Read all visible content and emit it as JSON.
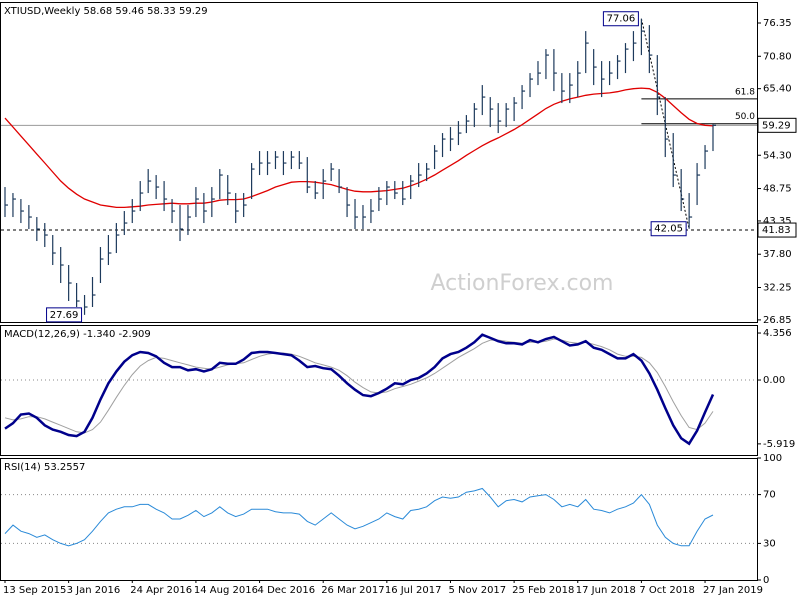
{
  "chart_data": [
    {
      "type": "ohlc",
      "title": "XTIUSD,Weekly  58.68 59.46 58.33 59.29",
      "watermark": "ActionForex.com",
      "ylim": [
        26.5,
        79.85
      ],
      "yticks": [
        76.35,
        {
          "value": 70.8,
          "label": "70.80"
        },
        {
          "value": 65.4,
          "label": "65.40"
        },
        59.85,
        {
          "value": 54.3,
          "label": "54.30"
        },
        48.75,
        43.35,
        {
          "value": 37.8,
          "label": "37.80"
        },
        32.25,
        26.85
      ],
      "color": "#1d3a5c",
      "high": [
        49,
        48,
        47,
        46,
        44,
        43,
        41,
        39,
        36,
        33,
        31,
        34,
        39,
        41,
        43,
        45,
        47,
        50,
        52,
        51,
        50,
        47,
        46,
        46,
        49,
        48,
        49,
        52,
        51,
        48,
        48,
        53,
        55,
        55,
        55,
        55,
        55,
        55,
        54,
        50,
        52,
        53,
        52,
        49,
        47,
        46,
        47,
        49,
        50,
        50,
        50,
        51,
        53,
        53,
        56,
        58,
        59,
        60,
        61,
        63,
        66,
        64,
        63,
        63,
        64,
        66,
        68,
        70,
        72,
        72,
        68,
        68,
        70,
        75,
        72,
        70,
        70,
        71,
        73,
        75,
        77.06,
        76,
        71,
        64,
        58,
        52,
        48,
        53,
        56,
        59.46
      ],
      "low": [
        44,
        44,
        43,
        42,
        40,
        39,
        36,
        33,
        30,
        29,
        27.69,
        29,
        33,
        36,
        38,
        41,
        43,
        45,
        48,
        47,
        45,
        43,
        40,
        41,
        44,
        43,
        44,
        47,
        46,
        43,
        44,
        47,
        51,
        51,
        52,
        51,
        52,
        52,
        48,
        47,
        47,
        50,
        48,
        44,
        42,
        42,
        43,
        45,
        46,
        47,
        46,
        47,
        49,
        50,
        52,
        54,
        55,
        56,
        58,
        59,
        61,
        59,
        58,
        59,
        60,
        62,
        64,
        66,
        67,
        65,
        63,
        63,
        64,
        68,
        66,
        64,
        66,
        67,
        68,
        70,
        71,
        68,
        61,
        54,
        49,
        45,
        42.05,
        46,
        52,
        55
      ],
      "close": [
        46,
        47,
        45,
        44,
        42,
        41,
        38,
        36,
        33,
        30,
        29,
        31,
        37,
        38,
        41,
        43,
        45,
        48,
        50,
        49,
        47,
        45,
        42,
        44,
        47,
        45,
        47,
        51,
        48,
        45,
        46,
        52,
        53,
        53,
        54,
        53,
        54,
        53,
        49,
        48,
        50,
        52,
        49,
        46,
        44,
        44,
        45,
        47,
        49,
        48,
        47,
        50,
        51,
        52,
        55,
        57,
        57,
        58,
        60,
        62,
        64,
        62,
        60,
        62,
        63,
        65,
        67,
        68,
        71,
        68,
        65,
        66,
        68,
        73,
        69,
        67,
        68,
        70,
        72,
        73,
        75,
        71,
        64,
        57,
        51,
        47,
        44,
        51,
        55,
        59.29
      ],
      "ma": {
        "color": "#e00000",
        "values": [
          60.5,
          59,
          57.5,
          56,
          54.5,
          53,
          51.5,
          50,
          48.8,
          47.8,
          47,
          46.5,
          46,
          45.8,
          45.6,
          45.6,
          45.7,
          45.8,
          46,
          46.1,
          46.2,
          46.3,
          46.2,
          46.2,
          46.3,
          46.3,
          46.5,
          46.8,
          46.9,
          46.9,
          47,
          47.4,
          47.9,
          48.4,
          49,
          49.4,
          49.8,
          49.9,
          49.9,
          49.8,
          49.6,
          49.4,
          49,
          48.6,
          48.3,
          48.2,
          48.2,
          48.3,
          48.4,
          48.6,
          48.8,
          49.2,
          49.7,
          50.3,
          51,
          51.8,
          52.6,
          53.4,
          54.3,
          55.1,
          55.9,
          56.6,
          57.2,
          57.9,
          58.6,
          59.4,
          60.3,
          61.2,
          62.1,
          62.8,
          63.3,
          63.7,
          64,
          64.3,
          64.5,
          64.6,
          64.7,
          64.9,
          65.2,
          65.4,
          65.5,
          65.4,
          64.8,
          63.8,
          62.6,
          61.4,
          60.3,
          59.6,
          59.3,
          59.2
        ]
      },
      "price_labels": [
        77.06,
        27.69,
        42.05
      ],
      "last_price": 59.29,
      "support": 41.83,
      "fib": [
        {
          "ratio_label": "61.8",
          "price": 63.69
        },
        {
          "ratio_label": "50.0",
          "price": 59.56
        }
      ]
    },
    {
      "type": "macd",
      "title": "MACD(12,26,9) -1.340 -2.909",
      "ylim": [
        -6.95,
        5.1
      ],
      "yticks": [
        4.356,
        {
          "value": 0,
          "label": "0.00"
        },
        -5.919
      ],
      "zero_line": true,
      "macd": {
        "color": "#00008b",
        "values": [
          -4.5,
          -4,
          -3.2,
          -3.1,
          -3.5,
          -4.2,
          -4.6,
          -4.8,
          -5.1,
          -5.2,
          -4.8,
          -3.5,
          -1.8,
          -0.3,
          0.8,
          1.7,
          2.3,
          2.6,
          2.5,
          2.2,
          1.6,
          1.2,
          1.2,
          0.9,
          1.0,
          0.8,
          1.0,
          1.6,
          1.5,
          1.5,
          1.9,
          2.5,
          2.6,
          2.6,
          2.5,
          2.4,
          2.3,
          1.8,
          1.2,
          1.3,
          1.1,
          1.0,
          0.4,
          -0.3,
          -0.9,
          -1.4,
          -1.5,
          -1.2,
          -0.8,
          -0.3,
          -0.4,
          0.0,
          0.2,
          0.6,
          1.2,
          2.0,
          2.4,
          2.6,
          3.0,
          3.5,
          4.2,
          3.9,
          3.6,
          3.4,
          3.4,
          3.3,
          3.7,
          3.5,
          3.8,
          4.0,
          3.6,
          3.2,
          3.3,
          3.6,
          3.0,
          2.8,
          2.4,
          2.0,
          2.0,
          2.4,
          1.8,
          0.6,
          -0.9,
          -2.6,
          -4.2,
          -5.4,
          -5.9,
          -4.7,
          -3.0,
          -1.34
        ]
      },
      "signal": {
        "color": "#a0a0a0",
        "values": [
          -3.5,
          -3.7,
          -3.6,
          -3.4,
          -3.4,
          -3.6,
          -3.9,
          -4.2,
          -4.5,
          -4.8,
          -4.9,
          -4.6,
          -3.9,
          -2.8,
          -1.6,
          -0.5,
          0.5,
          1.3,
          1.8,
          2.1,
          2.0,
          1.8,
          1.6,
          1.4,
          1.2,
          1.1,
          1.0,
          1.2,
          1.4,
          1.5,
          1.6,
          1.9,
          2.2,
          2.4,
          2.5,
          2.5,
          2.4,
          2.2,
          1.9,
          1.6,
          1.4,
          1.2,
          0.9,
          0.4,
          -0.2,
          -0.7,
          -1.1,
          -1.2,
          -1.1,
          -0.8,
          -0.6,
          -0.4,
          -0.1,
          0.2,
          0.6,
          1.1,
          1.6,
          2.1,
          2.5,
          2.9,
          3.4,
          3.7,
          3.7,
          3.6,
          3.5,
          3.4,
          3.5,
          3.5,
          3.6,
          3.8,
          3.7,
          3.5,
          3.4,
          3.5,
          3.3,
          3.1,
          2.8,
          2.4,
          2.2,
          2.2,
          2.1,
          1.6,
          0.7,
          -0.6,
          -2.0,
          -3.3,
          -4.4,
          -4.6,
          -4.0,
          -2.909
        ]
      }
    },
    {
      "type": "rsi",
      "title": "RSI(14) 53.2557",
      "ylim": [
        0,
        100
      ],
      "yticks": [
        100,
        70,
        30,
        0
      ],
      "grid": true,
      "color": "#2a8ad8",
      "categories": [
        "13 Sep 2015",
        null,
        null,
        null,
        null,
        null,
        null,
        null,
        "3 Jan 2016",
        null,
        null,
        null,
        null,
        null,
        null,
        null,
        "24 Apr 2016",
        null,
        null,
        null,
        null,
        null,
        null,
        null,
        "14 Aug 2016",
        null,
        null,
        null,
        null,
        null,
        null,
        null,
        "4 Dec 2016",
        null,
        null,
        null,
        null,
        null,
        null,
        null,
        "26 Mar 2017",
        null,
        null,
        null,
        null,
        null,
        null,
        null,
        "16 Jul 2017",
        null,
        null,
        null,
        null,
        null,
        null,
        null,
        "5 Nov 2017",
        null,
        null,
        null,
        null,
        null,
        null,
        null,
        "25 Feb 2018",
        null,
        null,
        null,
        null,
        null,
        null,
        null,
        "17 Jun 2018",
        null,
        null,
        null,
        null,
        null,
        null,
        null,
        "7 Oct 2018",
        null,
        null,
        null,
        null,
        null,
        null,
        null,
        "27 Jan 2019",
        null
      ],
      "values": [
        38,
        45,
        40,
        38,
        35,
        37,
        33,
        30,
        28,
        30,
        33,
        40,
        48,
        55,
        58,
        60,
        60,
        62,
        62,
        58,
        55,
        50,
        50,
        53,
        57,
        52,
        55,
        60,
        55,
        52,
        54,
        58,
        58,
        58,
        56,
        55,
        55,
        54,
        48,
        45,
        50,
        55,
        50,
        45,
        42,
        44,
        47,
        50,
        55,
        52,
        50,
        57,
        58,
        60,
        65,
        68,
        67,
        68,
        72,
        73,
        75,
        68,
        60,
        65,
        66,
        64,
        68,
        69,
        70,
        66,
        60,
        62,
        60,
        66,
        58,
        57,
        55,
        58,
        60,
        63,
        70,
        62,
        45,
        35,
        30,
        28,
        28,
        40,
        50,
        53.2557
      ]
    }
  ]
}
